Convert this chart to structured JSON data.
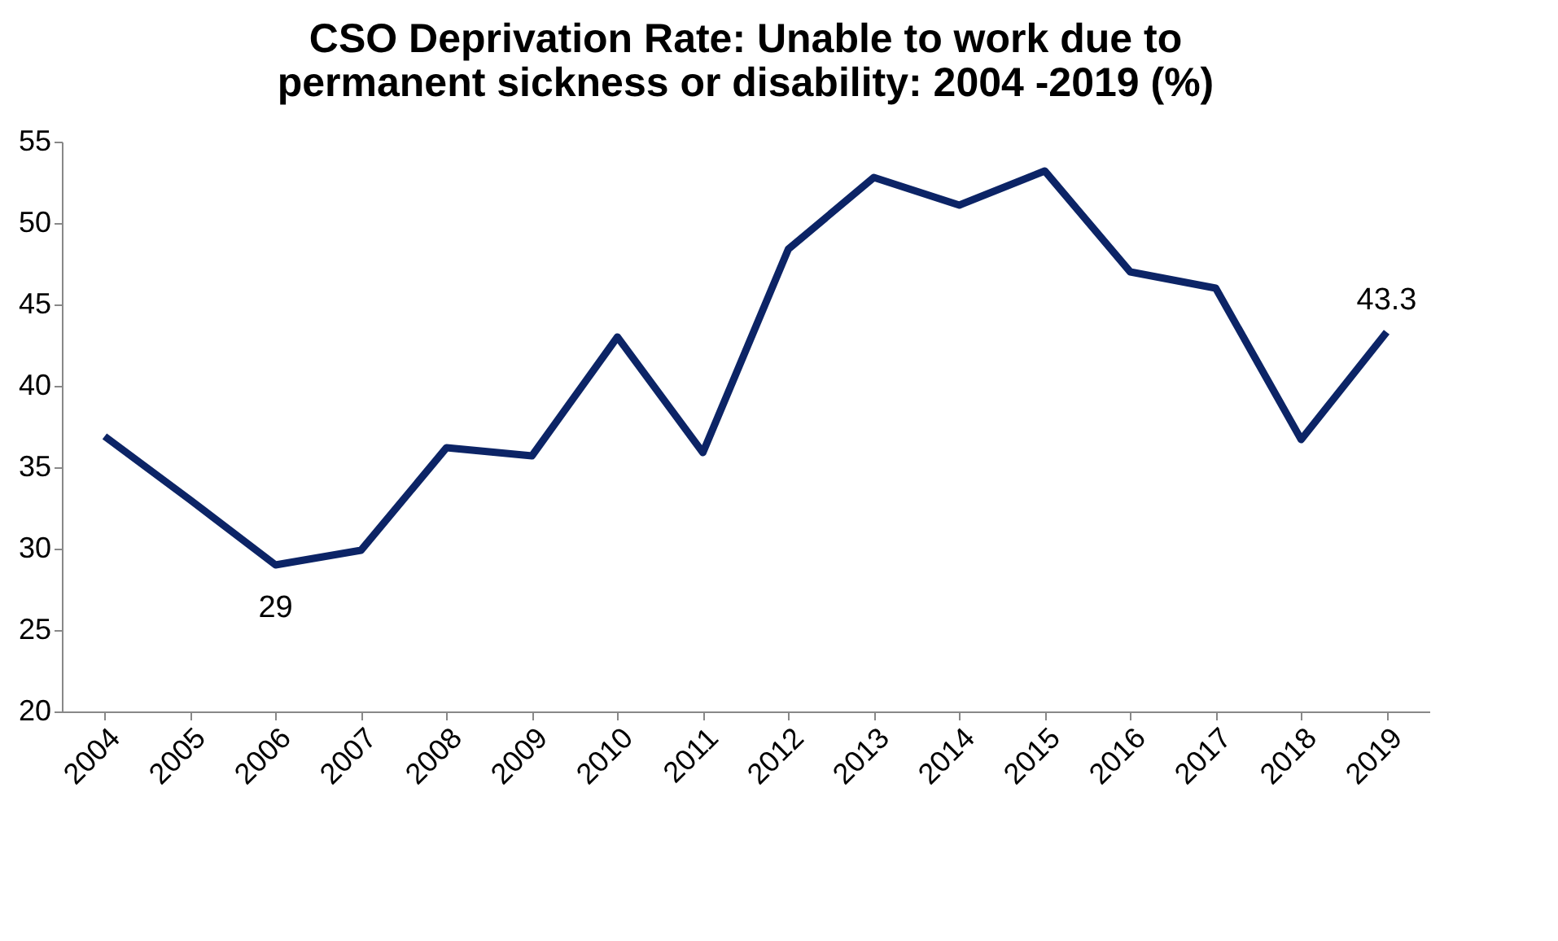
{
  "chart_data": {
    "type": "line",
    "title": "CSO Deprivation Rate:  Unable to work due to permanent sickness or disability:  2004 -2019 (%)",
    "categories": [
      "2004",
      "2005",
      "2006",
      "2007",
      "2008",
      "2009",
      "2010",
      "2011",
      "2012",
      "2013",
      "2014",
      "2015",
      "2016",
      "2017",
      "2018",
      "2019"
    ],
    "series": [
      {
        "color": "#0c2466",
        "values": [
          36.9,
          33,
          29,
          29.9,
          36.2,
          35.7,
          43.0,
          35.9,
          48.4,
          52.8,
          51.1,
          53.2,
          47.0,
          46.0,
          36.7,
          43.3
        ],
        "value_labels": [
          null,
          null,
          "29",
          null,
          null,
          null,
          null,
          null,
          null,
          null,
          null,
          null,
          null,
          null,
          null,
          "43.3"
        ]
      }
    ],
    "ylim": [
      20,
      55
    ],
    "yticks": [
      20,
      25,
      30,
      35,
      40,
      45,
      50,
      55
    ],
    "grid": false,
    "marker": "none",
    "line_style": "solid"
  }
}
